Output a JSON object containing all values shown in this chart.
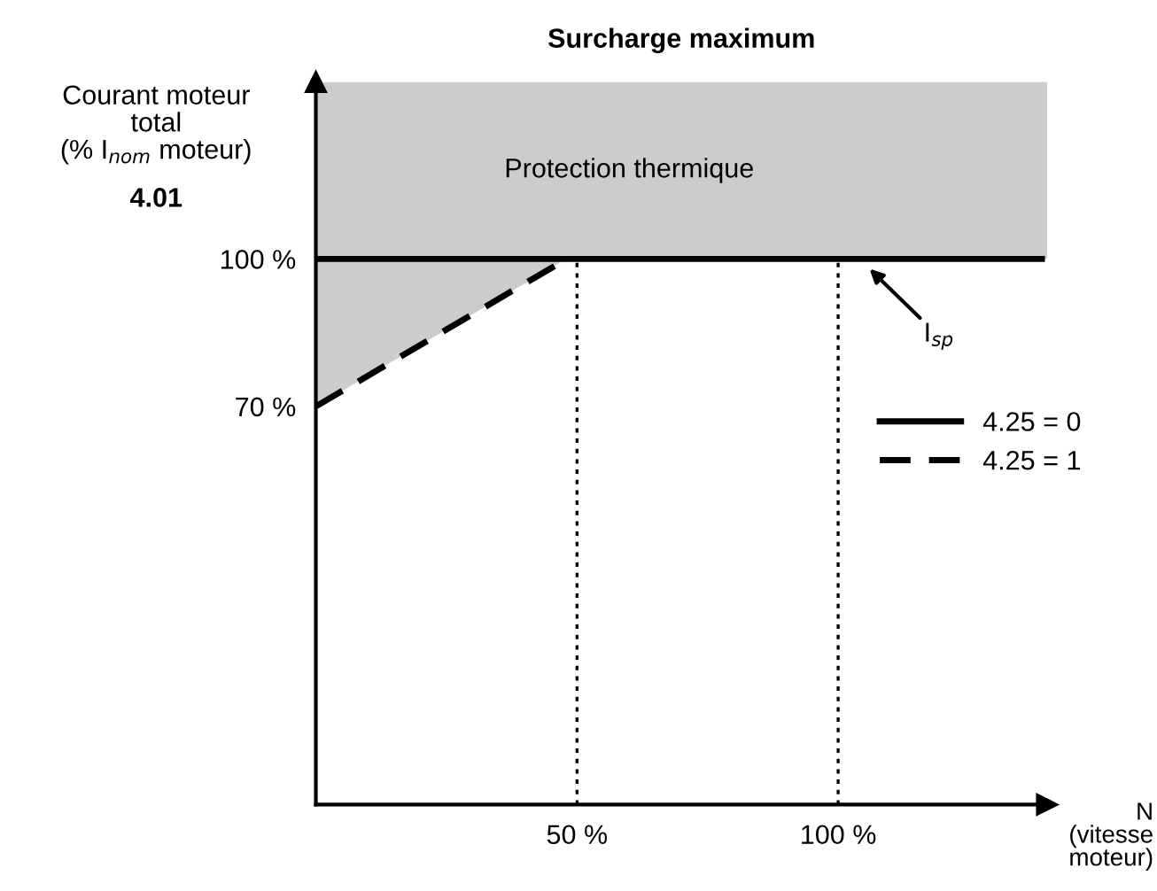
{
  "chart_data": {
    "type": "line",
    "title": "Surcharge maximum",
    "ylabel": "Courant moteur\ntotal\n(% I$_{nom}$ moteur)",
    "xlabel": "N\n(vitesse\nmoteur)",
    "xlim": [
      0,
      140
    ],
    "ylim": [
      -11,
      136
    ],
    "xticks": [
      {
        "value": 50,
        "label": "50 %"
      },
      {
        "value": 100,
        "label": "100 %"
      }
    ],
    "yticks": [
      {
        "value": 70,
        "label": "70 %"
      },
      {
        "value": 100,
        "label": "100 %"
      }
    ],
    "series": [
      {
        "name": "4.25 = 0",
        "color": "#000000",
        "line_style": "solid",
        "x": [
          0,
          139
        ],
        "values": [
          100,
          100
        ]
      },
      {
        "name": "4.25 = 1",
        "color": "#000000",
        "line_style": "dashed",
        "x": [
          0,
          48
        ],
        "values": [
          70,
          100
        ],
        "lower": [
          70,
          100
        ],
        "upper": [
          100,
          100
        ]
      }
    ],
    "bands": [
      {
        "axis": "y",
        "from": 100,
        "to": 136,
        "label": "Protection thermique",
        "color": "#cccccc"
      }
    ],
    "ref_lines": [
      {
        "axis": "x",
        "value": 50,
        "line_style": "dotted",
        "color": "#000000"
      },
      {
        "axis": "x",
        "value": 100,
        "line_style": "dotted",
        "color": "#000000"
      }
    ],
    "annotations": [
      "4.01",
      {
        "text": "I$_{sp}$",
        "x": 106,
        "y": 98
      }
    ],
    "legend": "right",
    "grid": false,
    "marker": "none"
  }
}
